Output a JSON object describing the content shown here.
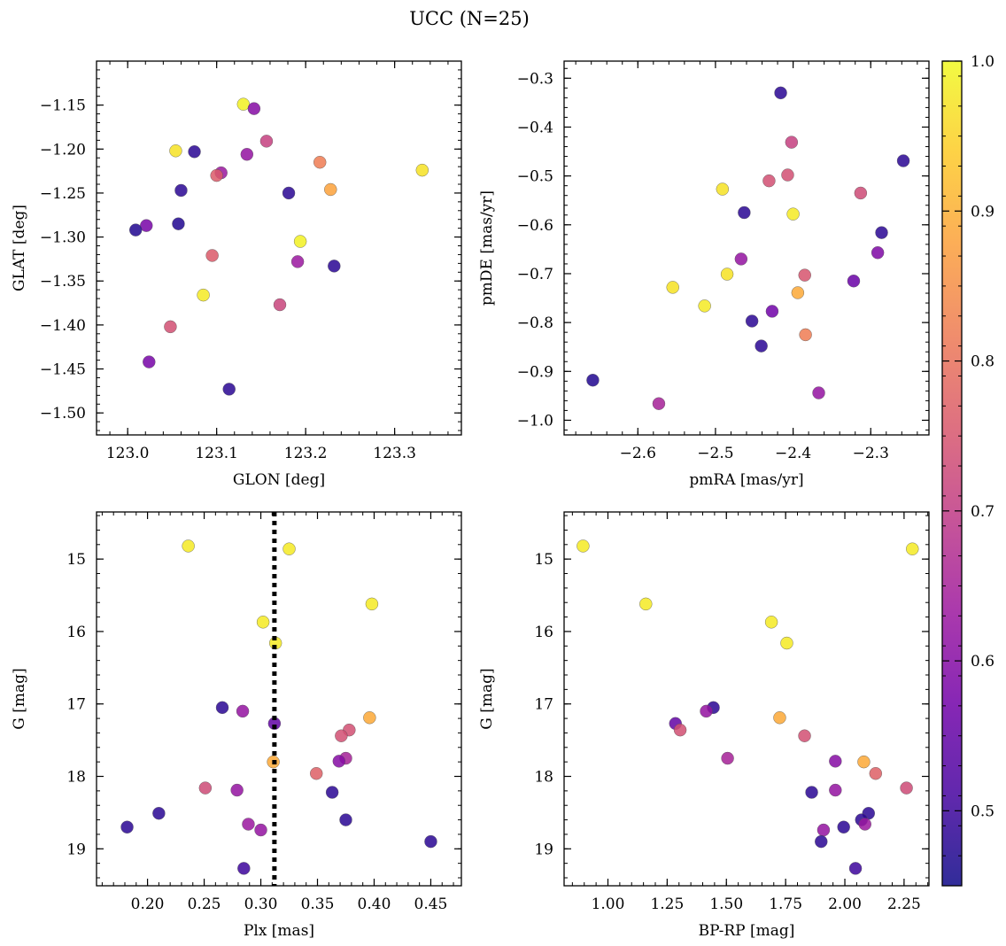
{
  "figure_title": "UCC (N=25)",
  "colormap": [
    "#0d0887",
    "#46039f",
    "#7201a8",
    "#9c179e",
    "#bd3786",
    "#d8576b",
    "#ed7953",
    "#fb9f3a",
    "#fdca26",
    "#f0f921"
  ],
  "colorbar": {
    "min": 0.45,
    "max": 1.0,
    "ticks": [
      0.5,
      0.6,
      0.7,
      0.8,
      0.9,
      1.0
    ],
    "tick_labels": [
      "0.5",
      "0.6",
      "0.7",
      "0.8",
      "0.9",
      "1.0"
    ]
  },
  "chart_data": [
    {
      "type": "scatter",
      "xlabel": "GLON [deg]",
      "ylabel": "GLAT [deg]",
      "xlim": [
        122.965,
        123.375
      ],
      "ylim": [
        -1.525,
        -1.1
      ],
      "xticks": [
        123.0,
        123.1,
        123.2,
        123.3
      ],
      "xtick_labels": [
        "123.0",
        "123.1",
        "123.2",
        "123.3"
      ],
      "yticks": [
        -1.15,
        -1.2,
        -1.25,
        -1.3,
        -1.35,
        -1.4,
        -1.45,
        -1.5
      ],
      "ytick_labels": [
        "−1.15",
        "−1.20",
        "−1.25",
        "−1.30",
        "−1.35",
        "−1.40",
        "−1.45",
        "−1.50"
      ],
      "x_minor_step": 0.02,
      "y_minor_step": 0.01,
      "points": [
        {
          "x": 123.13,
          "y": -1.149,
          "c": 0.99
        },
        {
          "x": 123.142,
          "y": -1.154,
          "c": 0.6
        },
        {
          "x": 123.156,
          "y": -1.191,
          "c": 0.71
        },
        {
          "x": 123.054,
          "y": -1.202,
          "c": 0.97
        },
        {
          "x": 123.075,
          "y": -1.203,
          "c": 0.48
        },
        {
          "x": 123.134,
          "y": -1.206,
          "c": 0.62
        },
        {
          "x": 123.216,
          "y": -1.215,
          "c": 0.82
        },
        {
          "x": 123.331,
          "y": -1.224,
          "c": 0.97
        },
        {
          "x": 123.105,
          "y": -1.227,
          "c": 0.63
        },
        {
          "x": 123.1,
          "y": -1.23,
          "c": 0.76
        },
        {
          "x": 123.228,
          "y": -1.246,
          "c": 0.88
        },
        {
          "x": 123.06,
          "y": -1.247,
          "c": 0.48
        },
        {
          "x": 123.181,
          "y": -1.25,
          "c": 0.48
        },
        {
          "x": 123.057,
          "y": -1.285,
          "c": 0.47
        },
        {
          "x": 123.021,
          "y": -1.287,
          "c": 0.58
        },
        {
          "x": 123.009,
          "y": -1.292,
          "c": 0.47
        },
        {
          "x": 123.194,
          "y": -1.305,
          "c": 0.99
        },
        {
          "x": 123.095,
          "y": -1.321,
          "c": 0.76
        },
        {
          "x": 123.191,
          "y": -1.328,
          "c": 0.63
        },
        {
          "x": 123.232,
          "y": -1.333,
          "c": 0.48
        },
        {
          "x": 123.085,
          "y": -1.366,
          "c": 0.98
        },
        {
          "x": 123.171,
          "y": -1.377,
          "c": 0.72
        },
        {
          "x": 123.048,
          "y": -1.402,
          "c": 0.74
        },
        {
          "x": 123.024,
          "y": -1.442,
          "c": 0.58
        },
        {
          "x": 123.114,
          "y": -1.473,
          "c": 0.48
        }
      ]
    },
    {
      "type": "scatter",
      "xlabel": "pmRA [mas/yr]",
      "ylabel": "pmDE [mas/yr]",
      "xlim": [
        -2.695,
        -2.225
      ],
      "ylim": [
        -1.03,
        -0.265
      ],
      "xticks": [
        -2.6,
        -2.5,
        -2.4,
        -2.3
      ],
      "xtick_labels": [
        "−2.6",
        "−2.5",
        "−2.4",
        "−2.3"
      ],
      "yticks": [
        -0.3,
        -0.4,
        -0.5,
        -0.6,
        -0.7,
        -0.8,
        -0.9,
        -1.0
      ],
      "ytick_labels": [
        "−0.3",
        "−0.4",
        "−0.5",
        "−0.6",
        "−0.7",
        "−0.8",
        "−0.9",
        "−1.0"
      ],
      "x_minor_step": 0.02,
      "y_minor_step": 0.02,
      "points": [
        {
          "x": -2.416,
          "y": -0.33,
          "c": 0.48
        },
        {
          "x": -2.402,
          "y": -0.431,
          "c": 0.71
        },
        {
          "x": -2.258,
          "y": -0.469,
          "c": 0.48
        },
        {
          "x": -2.407,
          "y": -0.498,
          "c": 0.74
        },
        {
          "x": -2.431,
          "y": -0.51,
          "c": 0.74
        },
        {
          "x": -2.491,
          "y": -0.527,
          "c": 0.97
        },
        {
          "x": -2.313,
          "y": -0.535,
          "c": 0.73
        },
        {
          "x": -2.463,
          "y": -0.575,
          "c": 0.48
        },
        {
          "x": -2.4,
          "y": -0.578,
          "c": 0.98
        },
        {
          "x": -2.286,
          "y": -0.616,
          "c": 0.48
        },
        {
          "x": -2.291,
          "y": -0.657,
          "c": 0.59
        },
        {
          "x": -2.467,
          "y": -0.67,
          "c": 0.62
        },
        {
          "x": -2.485,
          "y": -0.701,
          "c": 0.97
        },
        {
          "x": -2.385,
          "y": -0.703,
          "c": 0.75
        },
        {
          "x": -2.322,
          "y": -0.715,
          "c": 0.56
        },
        {
          "x": -2.555,
          "y": -0.728,
          "c": 0.97
        },
        {
          "x": -2.394,
          "y": -0.739,
          "c": 0.89
        },
        {
          "x": -2.514,
          "y": -0.766,
          "c": 0.98
        },
        {
          "x": -2.427,
          "y": -0.777,
          "c": 0.57
        },
        {
          "x": -2.453,
          "y": -0.797,
          "c": 0.48
        },
        {
          "x": -2.384,
          "y": -0.825,
          "c": 0.82
        },
        {
          "x": -2.441,
          "y": -0.848,
          "c": 0.48
        },
        {
          "x": -2.658,
          "y": -0.918,
          "c": 0.47
        },
        {
          "x": -2.367,
          "y": -0.944,
          "c": 0.62
        },
        {
          "x": -2.573,
          "y": -0.966,
          "c": 0.65
        }
      ]
    },
    {
      "type": "scatter",
      "xlabel": "Plx [mas]",
      "ylabel": "G [mag]",
      "xlim": [
        0.155,
        0.477
      ],
      "ylim": [
        19.51,
        14.35
      ],
      "xticks": [
        0.2,
        0.25,
        0.3,
        0.35,
        0.4,
        0.45
      ],
      "xtick_labels": [
        "0.20",
        "0.25",
        "0.30",
        "0.35",
        "0.40",
        "0.45"
      ],
      "yticks": [
        15,
        16,
        17,
        18,
        19
      ],
      "ytick_labels": [
        "15",
        "16",
        "17",
        "18",
        "19"
      ],
      "x_minor_step": 0.01,
      "y_minor_step": 0.2,
      "vline": 0.312,
      "points": [
        {
          "x": 0.236,
          "y": 14.82,
          "c": 0.98
        },
        {
          "x": 0.325,
          "y": 14.86,
          "c": 0.98
        },
        {
          "x": 0.398,
          "y": 15.62,
          "c": 0.98
        },
        {
          "x": 0.302,
          "y": 15.87,
          "c": 0.98
        },
        {
          "x": 0.313,
          "y": 16.16,
          "c": 0.98
        },
        {
          "x": 0.266,
          "y": 17.05,
          "c": 0.48
        },
        {
          "x": 0.284,
          "y": 17.1,
          "c": 0.62
        },
        {
          "x": 0.396,
          "y": 17.19,
          "c": 0.89
        },
        {
          "x": 0.312,
          "y": 17.27,
          "c": 0.55
        },
        {
          "x": 0.378,
          "y": 17.36,
          "c": 0.74
        },
        {
          "x": 0.371,
          "y": 17.44,
          "c": 0.74
        },
        {
          "x": 0.375,
          "y": 17.75,
          "c": 0.65
        },
        {
          "x": 0.369,
          "y": 17.79,
          "c": 0.6
        },
        {
          "x": 0.311,
          "y": 17.8,
          "c": 0.89
        },
        {
          "x": 0.349,
          "y": 17.96,
          "c": 0.77
        },
        {
          "x": 0.251,
          "y": 18.16,
          "c": 0.73
        },
        {
          "x": 0.279,
          "y": 18.19,
          "c": 0.62
        },
        {
          "x": 0.363,
          "y": 18.22,
          "c": 0.48
        },
        {
          "x": 0.21,
          "y": 18.51,
          "c": 0.48
        },
        {
          "x": 0.375,
          "y": 18.6,
          "c": 0.48
        },
        {
          "x": 0.289,
          "y": 18.66,
          "c": 0.63
        },
        {
          "x": 0.182,
          "y": 18.7,
          "c": 0.48
        },
        {
          "x": 0.3,
          "y": 18.74,
          "c": 0.62
        },
        {
          "x": 0.45,
          "y": 18.9,
          "c": 0.48
        },
        {
          "x": 0.285,
          "y": 19.27,
          "c": 0.5
        }
      ]
    },
    {
      "type": "scatter",
      "xlabel": "BP-RP [mag]",
      "ylabel": "G [mag]",
      "xlim": [
        0.815,
        2.355
      ],
      "ylim": [
        19.51,
        14.35
      ],
      "xticks": [
        1.0,
        1.25,
        1.5,
        1.75,
        2.0,
        2.25
      ],
      "xtick_labels": [
        "1.00",
        "1.25",
        "1.50",
        "1.75",
        "2.00",
        "2.25"
      ],
      "yticks": [
        15,
        16,
        17,
        18,
        19
      ],
      "ytick_labels": [
        "15",
        "16",
        "17",
        "18",
        "19"
      ],
      "x_minor_step": 0.05,
      "y_minor_step": 0.2,
      "points": [
        {
          "x": 0.895,
          "y": 14.82,
          "c": 0.98
        },
        {
          "x": 2.285,
          "y": 14.86,
          "c": 0.98
        },
        {
          "x": 1.16,
          "y": 15.62,
          "c": 0.98
        },
        {
          "x": 1.69,
          "y": 15.87,
          "c": 0.98
        },
        {
          "x": 1.755,
          "y": 16.16,
          "c": 0.98
        },
        {
          "x": 1.445,
          "y": 17.05,
          "c": 0.48
        },
        {
          "x": 1.415,
          "y": 17.1,
          "c": 0.62
        },
        {
          "x": 1.725,
          "y": 17.19,
          "c": 0.89
        },
        {
          "x": 1.285,
          "y": 17.27,
          "c": 0.55
        },
        {
          "x": 1.305,
          "y": 17.36,
          "c": 0.74
        },
        {
          "x": 1.83,
          "y": 17.44,
          "c": 0.74
        },
        {
          "x": 1.505,
          "y": 17.75,
          "c": 0.65
        },
        {
          "x": 1.96,
          "y": 17.79,
          "c": 0.6
        },
        {
          "x": 2.08,
          "y": 17.8,
          "c": 0.89
        },
        {
          "x": 2.13,
          "y": 17.96,
          "c": 0.77
        },
        {
          "x": 2.26,
          "y": 18.16,
          "c": 0.73
        },
        {
          "x": 1.96,
          "y": 18.19,
          "c": 0.62
        },
        {
          "x": 1.86,
          "y": 18.22,
          "c": 0.48
        },
        {
          "x": 2.1,
          "y": 18.51,
          "c": 0.48
        },
        {
          "x": 2.07,
          "y": 18.6,
          "c": 0.48
        },
        {
          "x": 2.085,
          "y": 18.66,
          "c": 0.63
        },
        {
          "x": 1.995,
          "y": 18.7,
          "c": 0.48
        },
        {
          "x": 1.91,
          "y": 18.74,
          "c": 0.62
        },
        {
          "x": 1.9,
          "y": 18.9,
          "c": 0.48
        },
        {
          "x": 2.045,
          "y": 19.27,
          "c": 0.5
        }
      ]
    }
  ]
}
